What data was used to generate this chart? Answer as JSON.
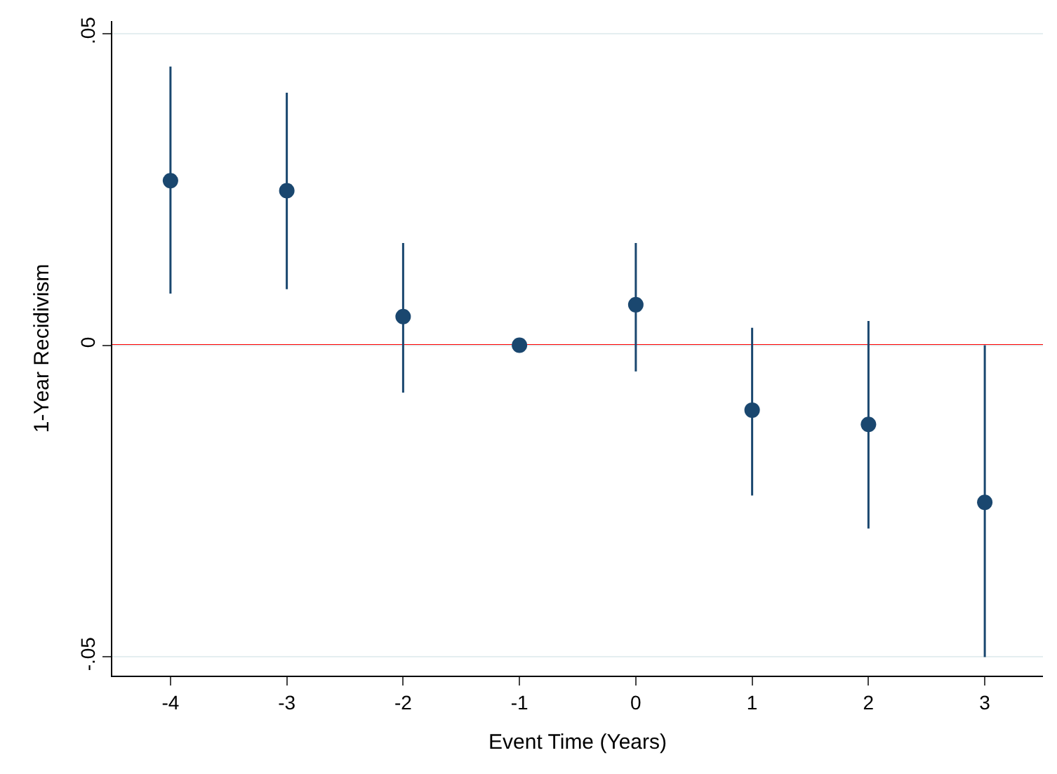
{
  "chart_data": {
    "type": "scatter",
    "xlabel": "Event Time (Years)",
    "ylabel": "1-Year Recidivism",
    "x": [
      -4,
      -3,
      -2,
      -1,
      0,
      1,
      2,
      3
    ],
    "series": [
      {
        "color": "#1a476f",
        "values": [
          0.0264,
          0.0248,
          0.0046,
          0,
          0.0065,
          -0.0104,
          -0.0127,
          -0.0252
        ],
        "errors": [
          [
            0.0083,
            0.0447
          ],
          [
            0.009,
            0.0405
          ],
          [
            -0.0076,
            0.0164
          ],
          null,
          [
            -0.0042,
            0.0164
          ],
          [
            -0.0241,
            0.0028
          ],
          [
            -0.0294,
            0.0039
          ],
          [
            -0.05,
            0
          ]
        ]
      }
    ],
    "xlim": [
      -4.5,
      3.5
    ],
    "ylim": [
      -0.053,
      0.052
    ],
    "xticks": [
      -4,
      -3,
      -2,
      -1,
      0,
      1,
      2,
      3
    ],
    "yticks": [
      {
        "value": -0.05,
        "label": "-.05"
      },
      0,
      {
        "value": 0.05,
        "label": ".05"
      }
    ],
    "ref_lines": [
      {
        "axis": "y",
        "value": 0,
        "color": "#ff0000"
      }
    ],
    "grid": "y",
    "marker": "circle"
  }
}
